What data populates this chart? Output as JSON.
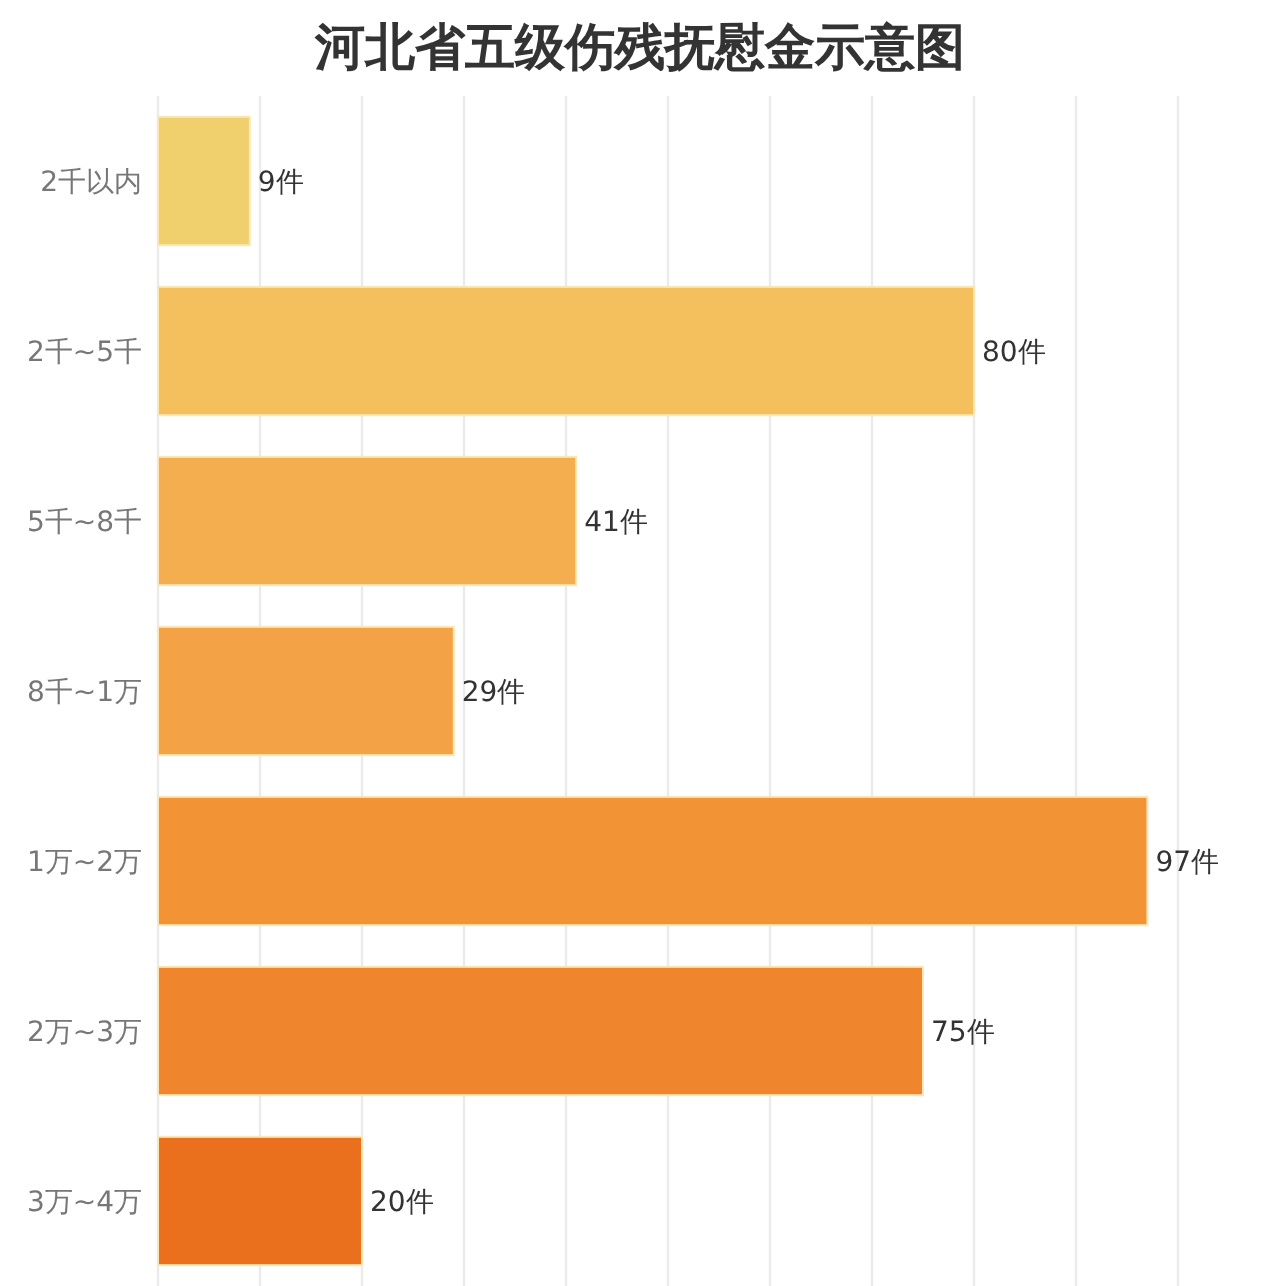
{
  "chart_data": {
    "type": "bar",
    "orientation": "horizontal",
    "title": "河北省五级伤残抚慰金示意图",
    "categories": [
      "2千以内",
      "2千~5千",
      "5千~8千",
      "8千~1万",
      "1万~2万",
      "2万~3万",
      "3万~4万"
    ],
    "values": [
      9,
      80,
      41,
      29,
      97,
      75,
      20
    ],
    "value_labels": [
      "9件",
      "80件",
      "41件",
      "29件",
      "97件",
      "75件",
      "20件"
    ],
    "colors": [
      "#efd06c",
      "#f4c05e",
      "#f4ae4f",
      "#f3a245",
      "#f29336",
      "#ef852c",
      "#eb701d"
    ],
    "xlim": [
      0,
      100
    ],
    "xticks": [
      {
        "value": 0,
        "label": null
      },
      {
        "value": 10,
        "label": null
      },
      {
        "value": 20,
        "label": null
      },
      {
        "value": 30,
        "label": null
      },
      {
        "value": 40,
        "label": null
      },
      {
        "value": 50,
        "label": null
      },
      {
        "value": 60,
        "label": null
      },
      {
        "value": 70,
        "label": null
      },
      {
        "value": 80,
        "label": null
      },
      {
        "value": 90,
        "label": null
      },
      {
        "value": 100,
        "label": null
      }
    ],
    "grid": "x",
    "tick_labels": "y"
  }
}
